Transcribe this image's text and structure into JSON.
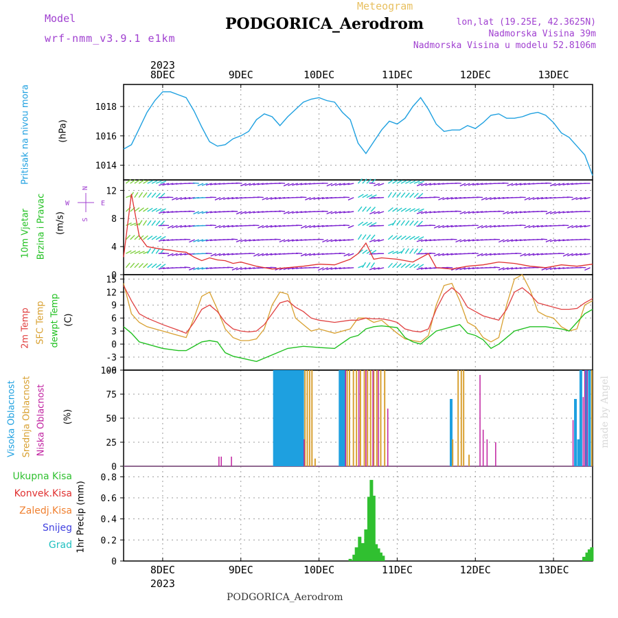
{
  "header": {
    "model_label": "Model",
    "model_name": "wrf-nmm_v3.9.1 e1km",
    "subtitle": "Meteogram",
    "title": "PODGORICA_Aerodrom",
    "lonlat": "lon,lat (19.25E, 42.3625N)",
    "elevation": "Nadmorska Visina 39m",
    "model_elevation": "Nadmorska Visina u modelu 52.8106m"
  },
  "footer": {
    "station": "PODGORICA_Aerodrom",
    "watermark": "made by Angel"
  },
  "colors": {
    "pressure": "#1ea0e0",
    "wind_speed": "#e03030",
    "temp2m": "#e04040",
    "sfc_temp": "#d8a030",
    "dewpt": "#20c020",
    "high_cloud": "#1ea0e0",
    "mid_cloud": "#d8a030",
    "low_cloud": "#c020a0",
    "total_precip": "#30c030",
    "conv_precip": "#e03030",
    "grid_precip": "#f08030",
    "snow": "#4040e0",
    "graupel": "#20c0c0",
    "wind_arrows": "#7b20d0"
  },
  "chart_data": [
    {
      "type": "line",
      "panel": "pressure",
      "ylabel_name": "Pritisak na nivou mora",
      "ylabel_unit": "(hPa)",
      "ylim": [
        1013,
        1019.5
      ],
      "yticks": [
        1014,
        1016,
        1018
      ],
      "x_range_days": [
        7.5,
        13.5
      ],
      "x_tick_labels": [
        "8DEC",
        "9DEC",
        "10DEC",
        "11DEC",
        "12DEC",
        "13DEC"
      ],
      "x_tick_days": [
        8,
        9,
        10,
        11,
        12,
        13
      ],
      "top_year": "2023",
      "series": [
        {
          "x": [
            7.5,
            7.6,
            7.7,
            7.8,
            7.9,
            8.0,
            8.1,
            8.2,
            8.3,
            8.4,
            8.5,
            8.6,
            8.7,
            8.8,
            8.9,
            9.0,
            9.1,
            9.2,
            9.3,
            9.4,
            9.5,
            9.6,
            9.7,
            9.8,
            9.9,
            10.0,
            10.1,
            10.2,
            10.3,
            10.4,
            10.5,
            10.6,
            10.7,
            10.8,
            10.9,
            11.0,
            11.1,
            11.2,
            11.3,
            11.4,
            11.5,
            11.6,
            11.7,
            11.8,
            11.9,
            12.0,
            12.1,
            12.2,
            12.3,
            12.4,
            12.5,
            12.6,
            12.7,
            12.8,
            12.9,
            13.0,
            13.1,
            13.2,
            13.3,
            13.4,
            13.5
          ],
          "values": [
            1015.1,
            1015.4,
            1016.5,
            1017.6,
            1018.4,
            1019.0,
            1019.0,
            1018.8,
            1018.6,
            1017.7,
            1016.6,
            1015.6,
            1015.3,
            1015.4,
            1015.8,
            1016.0,
            1016.3,
            1017.1,
            1017.5,
            1017.3,
            1016.7,
            1017.3,
            1017.8,
            1018.3,
            1018.5,
            1018.6,
            1018.4,
            1018.3,
            1017.6,
            1017.1,
            1015.5,
            1014.8,
            1015.6,
            1016.4,
            1017.0,
            1016.8,
            1017.2,
            1018.0,
            1018.6,
            1017.8,
            1016.8,
            1016.3,
            1016.4,
            1016.4,
            1016.7,
            1016.5,
            1016.9,
            1017.4,
            1017.5,
            1017.2,
            1017.2,
            1017.3,
            1017.5,
            1017.6,
            1017.4,
            1016.9,
            1016.2,
            1015.9,
            1015.3,
            1014.7,
            1013.3
          ]
        }
      ]
    },
    {
      "type": "line",
      "panel": "wind",
      "ylabel_name": "10m Vjetar",
      "ylabel_name2": "Brzina i Pravac",
      "ylabel_unit": "(m/s)",
      "ylim": [
        0,
        13.5
      ],
      "yticks": [
        0,
        4,
        8,
        12
      ],
      "compass": [
        "N",
        "W",
        "E",
        "S"
      ],
      "series": [
        {
          "name": "wind speed",
          "x": [
            7.5,
            7.6,
            7.7,
            7.8,
            7.9,
            8.0,
            8.1,
            8.2,
            8.3,
            8.4,
            8.5,
            8.6,
            8.7,
            8.8,
            8.9,
            9.0,
            9.2,
            9.4,
            9.6,
            9.8,
            10.0,
            10.2,
            10.4,
            10.5,
            10.6,
            10.7,
            10.8,
            11.0,
            11.2,
            11.4,
            11.5,
            11.7,
            11.9,
            12.1,
            12.3,
            12.5,
            12.7,
            12.9,
            13.1,
            13.3,
            13.5
          ],
          "values": [
            2.5,
            11.5,
            5.5,
            4.0,
            3.8,
            3.6,
            3.5,
            3.3,
            3.2,
            2.5,
            2.0,
            2.4,
            2.1,
            2.0,
            1.6,
            1.8,
            1.2,
            0.8,
            1.0,
            1.2,
            1.5,
            1.4,
            2.2,
            3.0,
            4.5,
            2.2,
            2.4,
            2.2,
            1.8,
            3.0,
            1.0,
            0.8,
            1.2,
            1.4,
            1.8,
            1.6,
            1.2,
            1.0,
            1.4,
            1.2,
            1.5
          ]
        }
      ]
    },
    {
      "type": "line",
      "panel": "temperature",
      "ylabel_names": [
        "2m Temp",
        "SFC Temp",
        "dewpt Temp"
      ],
      "ylabel_unit": "(C)",
      "ylim": [
        -6,
        16
      ],
      "yticks": [
        -6,
        -3,
        0,
        3,
        6,
        9,
        12,
        15
      ],
      "series": [
        {
          "name": "2m Temp",
          "x": [
            7.5,
            7.6,
            7.7,
            7.8,
            8.0,
            8.2,
            8.3,
            8.4,
            8.5,
            8.6,
            8.7,
            8.8,
            8.9,
            9.0,
            9.1,
            9.2,
            9.3,
            9.4,
            9.5,
            9.6,
            9.7,
            9.8,
            9.9,
            10.0,
            10.2,
            10.4,
            10.5,
            10.6,
            10.7,
            10.8,
            10.9,
            11.0,
            11.1,
            11.2,
            11.3,
            11.4,
            11.5,
            11.6,
            11.7,
            11.8,
            11.9,
            12.0,
            12.1,
            12.2,
            12.3,
            12.4,
            12.5,
            12.6,
            12.7,
            12.8,
            12.9,
            13.0,
            13.1,
            13.2,
            13.3,
            13.4,
            13.5
          ],
          "values": [
            13.5,
            10.0,
            7.0,
            6.0,
            4.5,
            3.2,
            2.5,
            5.0,
            8.0,
            9.0,
            7.5,
            5.0,
            3.5,
            3.0,
            2.8,
            3.0,
            4.5,
            7.0,
            9.5,
            10.0,
            8.5,
            7.5,
            6.0,
            5.5,
            5.0,
            5.5,
            5.5,
            6.0,
            5.8,
            5.8,
            5.5,
            5.0,
            3.5,
            3.0,
            2.8,
            3.5,
            8.0,
            11.5,
            13.0,
            11.5,
            8.5,
            7.5,
            6.5,
            6.0,
            5.5,
            8.0,
            12.0,
            13.0,
            11.5,
            9.5,
            9.0,
            8.5,
            8.0,
            8.0,
            8.2,
            9.5,
            10.5
          ]
        },
        {
          "name": "SFC Temp",
          "x": [
            7.5,
            7.6,
            7.7,
            7.8,
            8.0,
            8.2,
            8.3,
            8.4,
            8.5,
            8.6,
            8.7,
            8.8,
            8.9,
            9.0,
            9.1,
            9.2,
            9.3,
            9.4,
            9.5,
            9.6,
            9.7,
            9.8,
            9.9,
            10.0,
            10.2,
            10.4,
            10.5,
            10.6,
            10.7,
            10.8,
            10.9,
            11.0,
            11.1,
            11.2,
            11.3,
            11.4,
            11.5,
            11.6,
            11.7,
            11.8,
            11.9,
            12.0,
            12.1,
            12.2,
            12.3,
            12.4,
            12.5,
            12.6,
            12.7,
            12.8,
            12.9,
            13.0,
            13.1,
            13.2,
            13.3,
            13.4,
            13.5
          ],
          "values": [
            14.0,
            7.0,
            5.0,
            4.0,
            3.0,
            2.0,
            1.5,
            6.0,
            11.0,
            12.0,
            8.0,
            3.5,
            1.5,
            0.8,
            0.8,
            1.2,
            3.5,
            9.0,
            12.0,
            11.5,
            6.0,
            4.5,
            3.0,
            3.5,
            2.5,
            3.5,
            6.0,
            6.0,
            5.0,
            5.5,
            4.0,
            2.5,
            1.2,
            0.8,
            0.5,
            2.0,
            9.0,
            13.5,
            14.0,
            10.0,
            5.0,
            4.0,
            1.5,
            0.5,
            1.5,
            9.0,
            15.0,
            16.0,
            12.5,
            7.5,
            6.5,
            6.0,
            4.0,
            3.0,
            3.5,
            9.0,
            10.0
          ]
        },
        {
          "name": "dewpt Temp",
          "x": [
            7.5,
            7.6,
            7.7,
            7.8,
            8.0,
            8.2,
            8.3,
            8.4,
            8.5,
            8.6,
            8.7,
            8.8,
            8.9,
            9.0,
            9.2,
            9.4,
            9.6,
            9.8,
            10.0,
            10.2,
            10.4,
            10.5,
            10.6,
            10.7,
            10.8,
            11.0,
            11.1,
            11.2,
            11.3,
            11.5,
            11.6,
            11.7,
            11.8,
            11.9,
            12.0,
            12.1,
            12.2,
            12.3,
            12.5,
            12.7,
            12.9,
            13.1,
            13.2,
            13.3,
            13.4,
            13.5
          ],
          "values": [
            4.0,
            2.5,
            0.5,
            0.0,
            -1.0,
            -1.5,
            -1.5,
            -0.5,
            0.5,
            0.8,
            0.5,
            -2.0,
            -2.8,
            -3.2,
            -4.0,
            -2.5,
            -1.0,
            -0.5,
            -0.8,
            -1.0,
            1.5,
            2.0,
            3.5,
            4.0,
            4.2,
            3.8,
            1.5,
            0.5,
            0.0,
            3.0,
            3.5,
            4.0,
            4.5,
            2.5,
            2.0,
            1.0,
            -1.0,
            0.0,
            3.0,
            4.0,
            4.0,
            3.5,
            3.0,
            5.0,
            7.0,
            8.0
          ]
        }
      ]
    },
    {
      "type": "bar",
      "panel": "cloud",
      "ylabel_names": [
        "Visoka Oblacnost",
        "Srednja Oblacnost",
        "Niska Oblacnost"
      ],
      "ylabel_unit": "(%)",
      "ylim": [
        0,
        100
      ],
      "yticks": [
        0,
        25,
        50,
        75,
        100
      ],
      "series": [
        {
          "name": "Visoka Oblacnost",
          "x": [
            9.43,
            9.46,
            9.49,
            9.52,
            9.55,
            9.58,
            9.61,
            9.64,
            9.67,
            9.7,
            9.73,
            9.76,
            9.79,
            10.27,
            10.3,
            10.33,
            11.69,
            13.28,
            13.32,
            13.35,
            13.42,
            13.46
          ],
          "values": [
            100,
            100,
            100,
            100,
            100,
            100,
            100,
            100,
            100,
            100,
            100,
            100,
            100,
            100,
            100,
            100,
            70,
            70,
            28,
            100,
            100,
            100
          ]
        },
        {
          "name": "Srednja Oblacnost",
          "x": [
            9.82,
            9.85,
            9.88,
            9.91,
            9.95,
            10.36,
            10.39,
            10.44,
            10.48,
            10.53,
            10.58,
            10.62,
            10.66,
            10.7,
            10.74,
            10.79,
            10.84,
            11.71,
            11.78,
            11.82,
            11.85,
            11.92,
            13.49
          ],
          "values": [
            100,
            100,
            100,
            100,
            8,
            100,
            100,
            100,
            100,
            100,
            100,
            100,
            100,
            100,
            100,
            100,
            100,
            28,
            100,
            100,
            100,
            12,
            100
          ]
        },
        {
          "name": "Niska Oblacnost",
          "x": [
            8.72,
            8.75,
            8.88,
            9.81,
            10.34,
            10.51,
            10.6,
            10.69,
            10.76,
            10.88,
            12.06,
            12.1,
            12.15,
            12.26,
            13.25,
            13.38,
            13.4,
            13.43
          ],
          "values": [
            10,
            10,
            10,
            28,
            100,
            100,
            100,
            100,
            100,
            60,
            95,
            38,
            28,
            25,
            48,
            72,
            100,
            100
          ]
        }
      ]
    },
    {
      "type": "bar",
      "panel": "precip",
      "ylabel_name": "1hr Precip",
      "ylabel_unit": "(mm)",
      "legend": [
        "Ukupna Kisa",
        "Konvek.Kisa",
        "Zaledj.Kisa",
        "Snijeg",
        "Grad"
      ],
      "ylim": [
        0,
        0.9
      ],
      "yticks": [
        0,
        0.2,
        0.4,
        0.6,
        0.8
      ],
      "series": [
        {
          "name": "Ukupna Kisa",
          "x": [
            10.4,
            10.45,
            10.48,
            10.52,
            10.56,
            10.6,
            10.64,
            10.67,
            10.7,
            10.73,
            10.76,
            10.79,
            10.82,
            13.39,
            13.43,
            13.46,
            13.49
          ],
          "values": [
            0.02,
            0.06,
            0.13,
            0.23,
            0.17,
            0.3,
            0.61,
            0.77,
            0.62,
            0.16,
            0.12,
            0.08,
            0.05,
            0.04,
            0.08,
            0.11,
            0.13
          ]
        }
      ]
    }
  ]
}
